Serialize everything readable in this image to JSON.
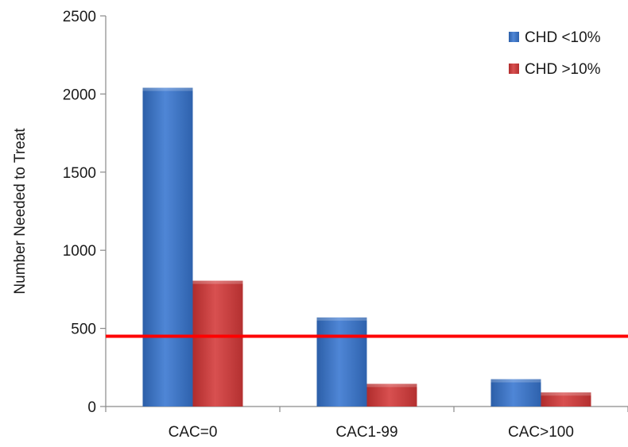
{
  "chart_data": {
    "type": "bar",
    "title": "",
    "xlabel": "",
    "ylabel": "Number Needed to Treat",
    "categories": [
      "CAC=0",
      "CAC1-99",
      "CAC>100"
    ],
    "series": [
      {
        "name": "CHD <10%",
        "values": [
          2040,
          570,
          175
        ],
        "color": "#3d72c4"
      },
      {
        "name": "CHD >10%",
        "values": [
          805,
          145,
          90
        ],
        "color": "#c93b3b"
      }
    ],
    "ylim": [
      0,
      2500
    ],
    "yticks": [
      0,
      500,
      1000,
      1500,
      2000,
      2500
    ],
    "reference_line": {
      "value": 450,
      "color": "#ff0000"
    },
    "grid": false,
    "legend": "top-right"
  }
}
